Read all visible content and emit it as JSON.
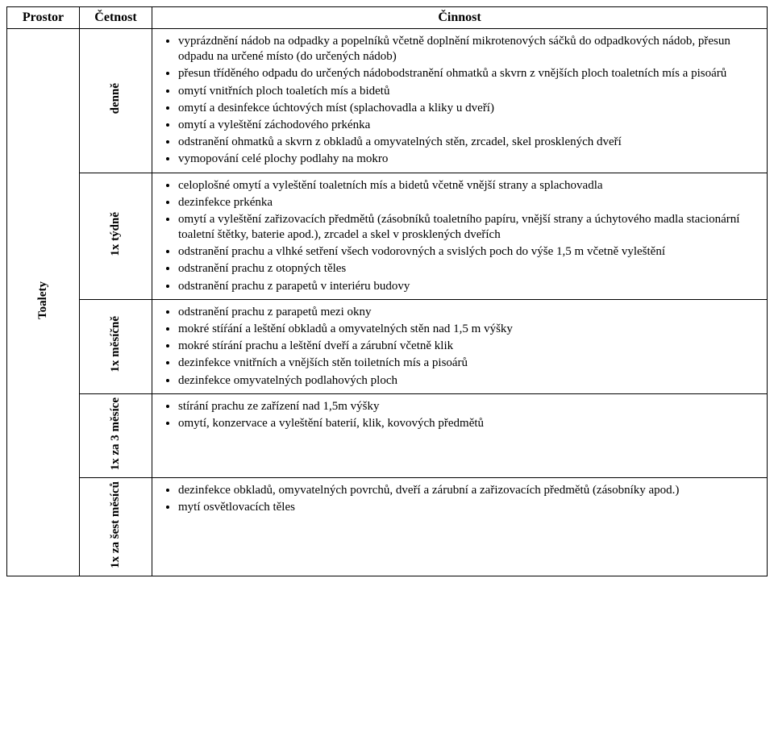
{
  "header": {
    "col1": "Prostor",
    "col2": "Četnost",
    "col3": "Činnost"
  },
  "room": "Toalety",
  "sections": [
    {
      "freq": "denně",
      "items": [
        "vyprázdnění nádob na odpadky a popelníků včetně doplnění mikrotenových sáčků do odpadkových nádob, přesun odpadu na určené místo (do určených nádob)",
        "přesun tříděného odpadu do určených nádobodstranění ohmatků a skvrn z vnějších ploch toaletních mís a pisoárů",
        "omytí vnitřních ploch toaletích mís a bidetů",
        "omytí a desinfekce úchtových míst (splachovadla a kliky u dveří)",
        "omytí a vyleštění záchodového prkénka",
        "odstranění ohmatků a skvrn z obkladů a omyvatelných stěn, zrcadel, skel prosklených dveří",
        "vymopování celé plochy podlahy na mokro"
      ]
    },
    {
      "freq": "1x týdně",
      "items": [
        "celoplošné omytí a vyleštění toaletních mís a bidetů včetně vnější strany a splachovadla",
        "dezinfekce prkénka",
        "omytí a vyleštění zařizovacích předmětů (zásobníků toaletního papíru, vnější strany a úchytového madla stacionární toaletní štětky, baterie apod.), zrcadel a skel v prosklených dveřích",
        "odstranění prachu a vlhké setření všech vodorovných a svislých poch do výše 1,5 m včetně vyleštění",
        "odstranění prachu z otopných těles",
        "odstranění prachu z parapetů v interiéru budovy"
      ]
    },
    {
      "freq": "1x měsíčně",
      "items": [
        "odstranění prachu z parapetů mezi okny",
        "mokré stíŕání a leštění obkladů a omyvatelných stěn nad 1,5 m výšky",
        "mokré stírání prachu a leštění dveří a zárubní včetně klik",
        "dezinfekce vnitřních a vnějších stěn toiletních mís a pisoárů",
        "dezinfekce omyvatelných podlahových ploch"
      ]
    },
    {
      "freq": "1x za 3 měsíce",
      "items": [
        "stírání prachu ze zařízení nad 1,5m výšky",
        "omytí, konzervace a vyleštění baterií, klik, kovových předmětů"
      ]
    },
    {
      "freq": "1x za šest měsíců",
      "items": [
        "dezinfekce obkladů, omyvatelných povrchů, dveří a zárubní a zařizovacích předmětů (zásobníky apod.)",
        "mytí osvětlovacích těles"
      ]
    }
  ]
}
